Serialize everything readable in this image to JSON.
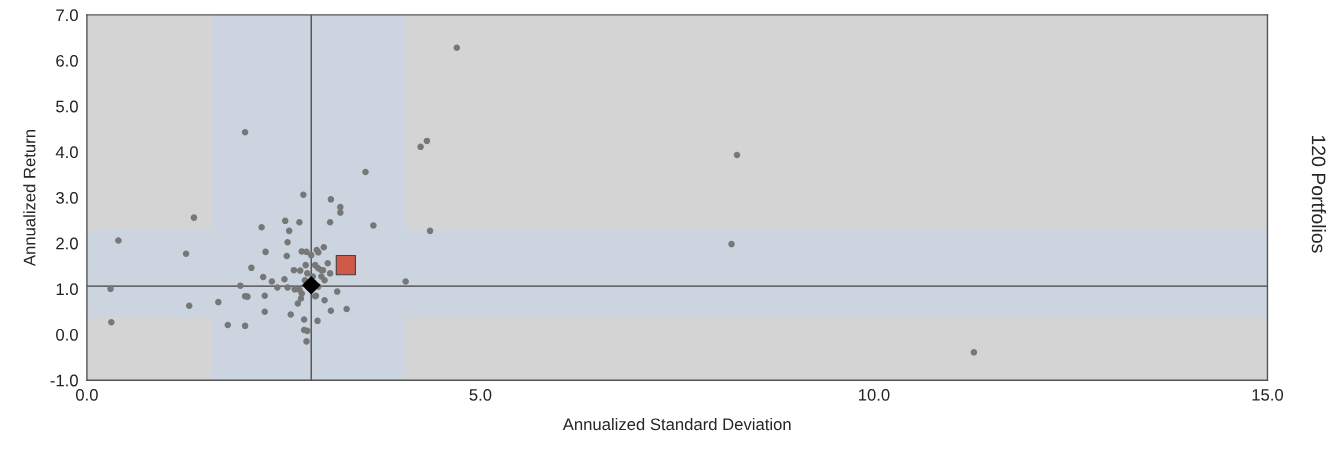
{
  "chart_data": {
    "type": "scatter",
    "xlabel": "Annualized Standard Deviation",
    "ylabel": "Annualized Return",
    "annotations": [
      "120 Portfolios"
    ],
    "xlim": [
      0,
      15
    ],
    "ylim": [
      -1,
      7
    ],
    "xticks": [
      {
        "value": 0,
        "label": "0.0"
      },
      {
        "value": 5,
        "label": "5.0"
      },
      {
        "value": 10,
        "label": "10.0"
      },
      {
        "value": 15,
        "label": "15.0"
      }
    ],
    "yticks": [
      {
        "value": -1,
        "label": "-1.0"
      },
      {
        "value": 0,
        "label": "0.0"
      },
      {
        "value": 1,
        "label": "1.0"
      },
      {
        "value": 2,
        "label": "2.0"
      },
      {
        "value": 3,
        "label": "3.0"
      },
      {
        "value": 4,
        "label": "4.0"
      },
      {
        "value": 5,
        "label": "5.0"
      },
      {
        "value": 6,
        "label": "6.0"
      },
      {
        "value": 7,
        "label": "7.0"
      }
    ],
    "grid": false,
    "legend": false,
    "bands": [
      {
        "axis": "x",
        "from": 1.59,
        "to": 4.04,
        "color": "#ccd4e0"
      },
      {
        "axis": "y",
        "from": 0.36,
        "to": 2.29,
        "color": "#ccd4e0"
      }
    ],
    "ref_lines": [
      {
        "axis": "x",
        "value": 2.85,
        "color": "#404040"
      },
      {
        "axis": "y",
        "value": 1.06,
        "color": "#404040"
      }
    ],
    "series": [
      {
        "color": "#777777",
        "marker": "circle",
        "x": [
          4.7,
          4.24,
          4.32,
          8.26,
          8.19,
          11.27,
          4.36,
          4.05,
          2.01,
          1.36,
          0.4,
          1.26,
          0.3,
          1.3,
          0.31,
          1.67,
          1.79,
          2.01,
          1.95,
          3.54,
          3.64,
          2.75,
          3.1,
          3.22,
          3.22,
          2.52,
          2.7,
          3.09,
          2.22,
          2.57,
          2.55,
          2.27,
          2.54,
          2.09,
          2.24,
          2.35,
          2.42,
          2.51,
          2.55,
          2.64,
          2.76,
          2.76,
          2.8,
          2.79,
          2.93,
          2.26,
          2.59,
          2.01,
          3.18,
          3.3,
          3.1,
          2.9,
          2.72,
          2.68,
          2.73,
          2.85,
          2.94,
          3.01,
          2.78,
          2.9,
          2.98,
          3.09,
          2.63,
          2.71,
          2.8,
          2.87,
          2.98,
          2.77,
          2.94,
          3.02,
          2.73,
          2.92,
          2.79,
          2.94,
          3.0,
          3.06,
          2.91,
          3.02,
          2.7,
          2.26,
          2.04
        ],
        "values": [
          6.28,
          4.11,
          4.24,
          3.93,
          1.98,
          -0.39,
          2.27,
          1.16,
          4.43,
          2.56,
          2.06,
          1.77,
          1.0,
          0.63,
          0.27,
          0.71,
          0.21,
          0.19,
          1.07,
          3.56,
          2.39,
          3.06,
          2.96,
          2.79,
          2.67,
          2.49,
          2.46,
          2.46,
          2.35,
          2.27,
          2.02,
          1.81,
          1.72,
          1.46,
          1.26,
          1.16,
          1.03,
          1.21,
          1.03,
          0.99,
          0.33,
          0.1,
          0.08,
          -0.15,
          0.3,
          0.5,
          0.44,
          0.84,
          0.94,
          0.56,
          0.52,
          0.84,
          0.79,
          0.68,
          1.82,
          1.74,
          1.8,
          1.91,
          1.52,
          1.52,
          1.41,
          1.34,
          1.41,
          1.4,
          1.34,
          1.27,
          1.27,
          1.19,
          1.05,
          1.19,
          0.9,
          1.85,
          1.81,
          1.45,
          1.41,
          1.56,
          0.85,
          0.75,
          0.98,
          0.85,
          0.83
        ]
      },
      {
        "color": "#d05a48",
        "marker": "square",
        "x": [
          3.29
        ],
        "values": [
          1.52
        ]
      },
      {
        "color": "#000000",
        "marker": "diamond",
        "x": [
          2.85
        ],
        "values": [
          1.08
        ]
      }
    ]
  }
}
